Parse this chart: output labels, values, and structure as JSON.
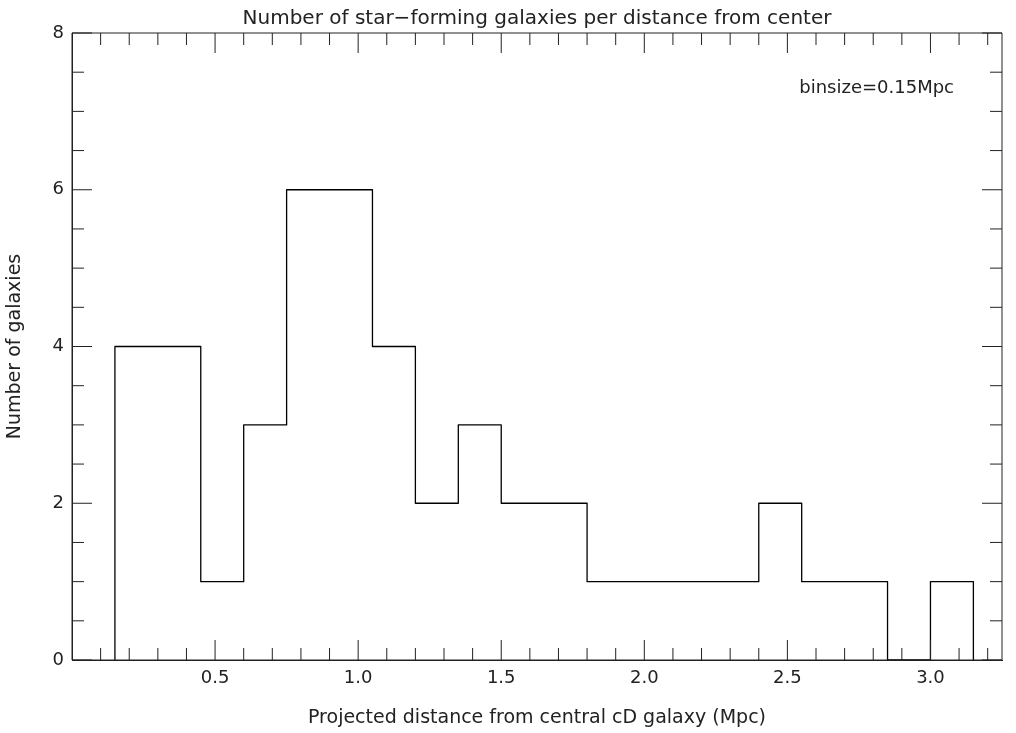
{
  "chart_data": {
    "type": "step",
    "title": "Number of star−forming galaxies per distance from center",
    "xlabel": "Projected distance from central cD galaxy (Mpc)",
    "ylabel": "Number of galaxies",
    "annotations": [
      "binsize=0.15Mpc"
    ],
    "x": [
      0.15,
      0.15,
      0.3,
      0.45,
      0.6,
      0.75,
      0.9,
      1.05,
      1.2,
      1.35,
      1.5,
      1.65,
      1.8,
      1.95,
      2.1,
      2.25,
      2.4,
      2.55,
      2.7,
      2.85,
      3.0,
      3.15
    ],
    "values": [
      0,
      4,
      4,
      1,
      3,
      6,
      6,
      4,
      2,
      3,
      2,
      2,
      1,
      1,
      1,
      1,
      2,
      1,
      1,
      0,
      1,
      0
    ],
    "color": "#000000",
    "xlim": [
      0,
      3.25
    ],
    "xticks": [
      {
        "value": 0.1,
        "label": null
      },
      {
        "value": 0.2,
        "label": null
      },
      {
        "value": 0.3,
        "label": null
      },
      {
        "value": 0.4,
        "label": null
      },
      0.5,
      {
        "value": 0.6,
        "label": null
      },
      {
        "value": 0.7,
        "label": null
      },
      {
        "value": 0.8,
        "label": null
      },
      {
        "value": 0.9,
        "label": null
      },
      {
        "value": 1.0,
        "label": "1.0"
      },
      {
        "value": 1.1,
        "label": null
      },
      {
        "value": 1.2,
        "label": null
      },
      {
        "value": 1.3,
        "label": null
      },
      {
        "value": 1.4,
        "label": null
      },
      1.5,
      {
        "value": 1.6,
        "label": null
      },
      {
        "value": 1.7,
        "label": null
      },
      {
        "value": 1.8,
        "label": null
      },
      {
        "value": 1.9,
        "label": null
      },
      {
        "value": 2.0,
        "label": "2.0"
      },
      {
        "value": 2.1,
        "label": null
      },
      {
        "value": 2.2,
        "label": null
      },
      {
        "value": 2.3,
        "label": null
      },
      {
        "value": 2.4,
        "label": null
      },
      2.5,
      {
        "value": 2.6,
        "label": null
      },
      {
        "value": 2.7,
        "label": null
      },
      {
        "value": 2.8,
        "label": null
      },
      {
        "value": 2.9,
        "label": null
      },
      {
        "value": 3.0,
        "label": "3.0"
      },
      {
        "value": 3.1,
        "label": null
      },
      {
        "value": 3.2,
        "label": null
      }
    ],
    "ylim": [
      0,
      8
    ],
    "yticks": [
      0,
      {
        "value": 0.5,
        "label": null
      },
      {
        "value": 1,
        "label": null
      },
      {
        "value": 1.5,
        "label": null
      },
      2,
      {
        "value": 2.5,
        "label": null
      },
      {
        "value": 3,
        "label": null
      },
      {
        "value": 3.5,
        "label": null
      },
      4,
      {
        "value": 4.5,
        "label": null
      },
      {
        "value": 5,
        "label": null
      },
      {
        "value": 5.5,
        "label": null
      },
      6,
      {
        "value": 6.5,
        "label": null
      },
      {
        "value": 7,
        "label": null
      },
      {
        "value": 7.5,
        "label": null
      },
      8
    ],
    "grid": false,
    "legend": false
  }
}
